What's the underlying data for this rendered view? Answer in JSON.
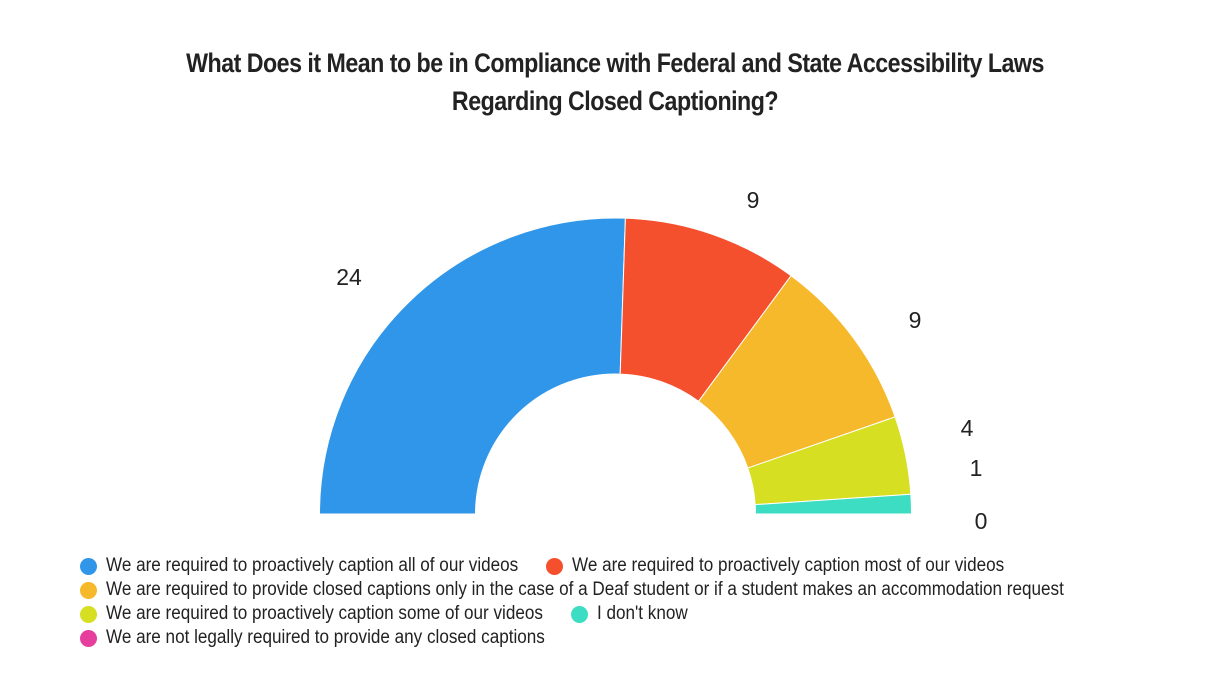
{
  "title": {
    "line1": "What Does it Mean to be in Compliance with Federal and State Accessibility Laws",
    "line2": "Regarding Closed Captioning?"
  },
  "chart_data": {
    "type": "pie",
    "subtype": "semi-donut",
    "title": "What Does it Mean to be in Compliance with Federal and State Accessibility Laws Regarding Closed Captioning?",
    "categories": [
      "We are required to proactively caption all of our videos",
      "We are required to proactively caption most of our videos",
      "We are required to provide closed captions only in the case of a Deaf student or if a student makes an accommodation request",
      "We are required to proactively caption some of our videos",
      "I don't know",
      "We are not legally required to provide any closed captions"
    ],
    "values": [
      24,
      9,
      9,
      4,
      1,
      0
    ],
    "colors": [
      "#3096E9",
      "#F5502E",
      "#F6B92B",
      "#D6DF22",
      "#3DDDC3",
      "#E63E9C"
    ],
    "data_labels": [
      "24",
      "9",
      "9",
      "4",
      "1",
      "0"
    ],
    "legend_position": "bottom"
  },
  "legend": {
    "rows": [
      [
        {
          "label": "We are required to proactively caption all of our videos",
          "color": "#3096E9"
        },
        {
          "label": "We are required to proactively caption most of our videos",
          "color": "#F5502E"
        }
      ],
      [
        {
          "label": "We are required to provide closed captions only in the case of a Deaf student or if a student makes an accommodation request",
          "color": "#F6B92B"
        }
      ],
      [
        {
          "label": "We are required to proactively caption some of our videos",
          "color": "#D6DF22"
        },
        {
          "label": "I don't know",
          "color": "#3DDDC3"
        }
      ],
      [
        {
          "label": "We are not legally required to provide any closed captions",
          "color": "#E63E9C"
        }
      ]
    ]
  }
}
